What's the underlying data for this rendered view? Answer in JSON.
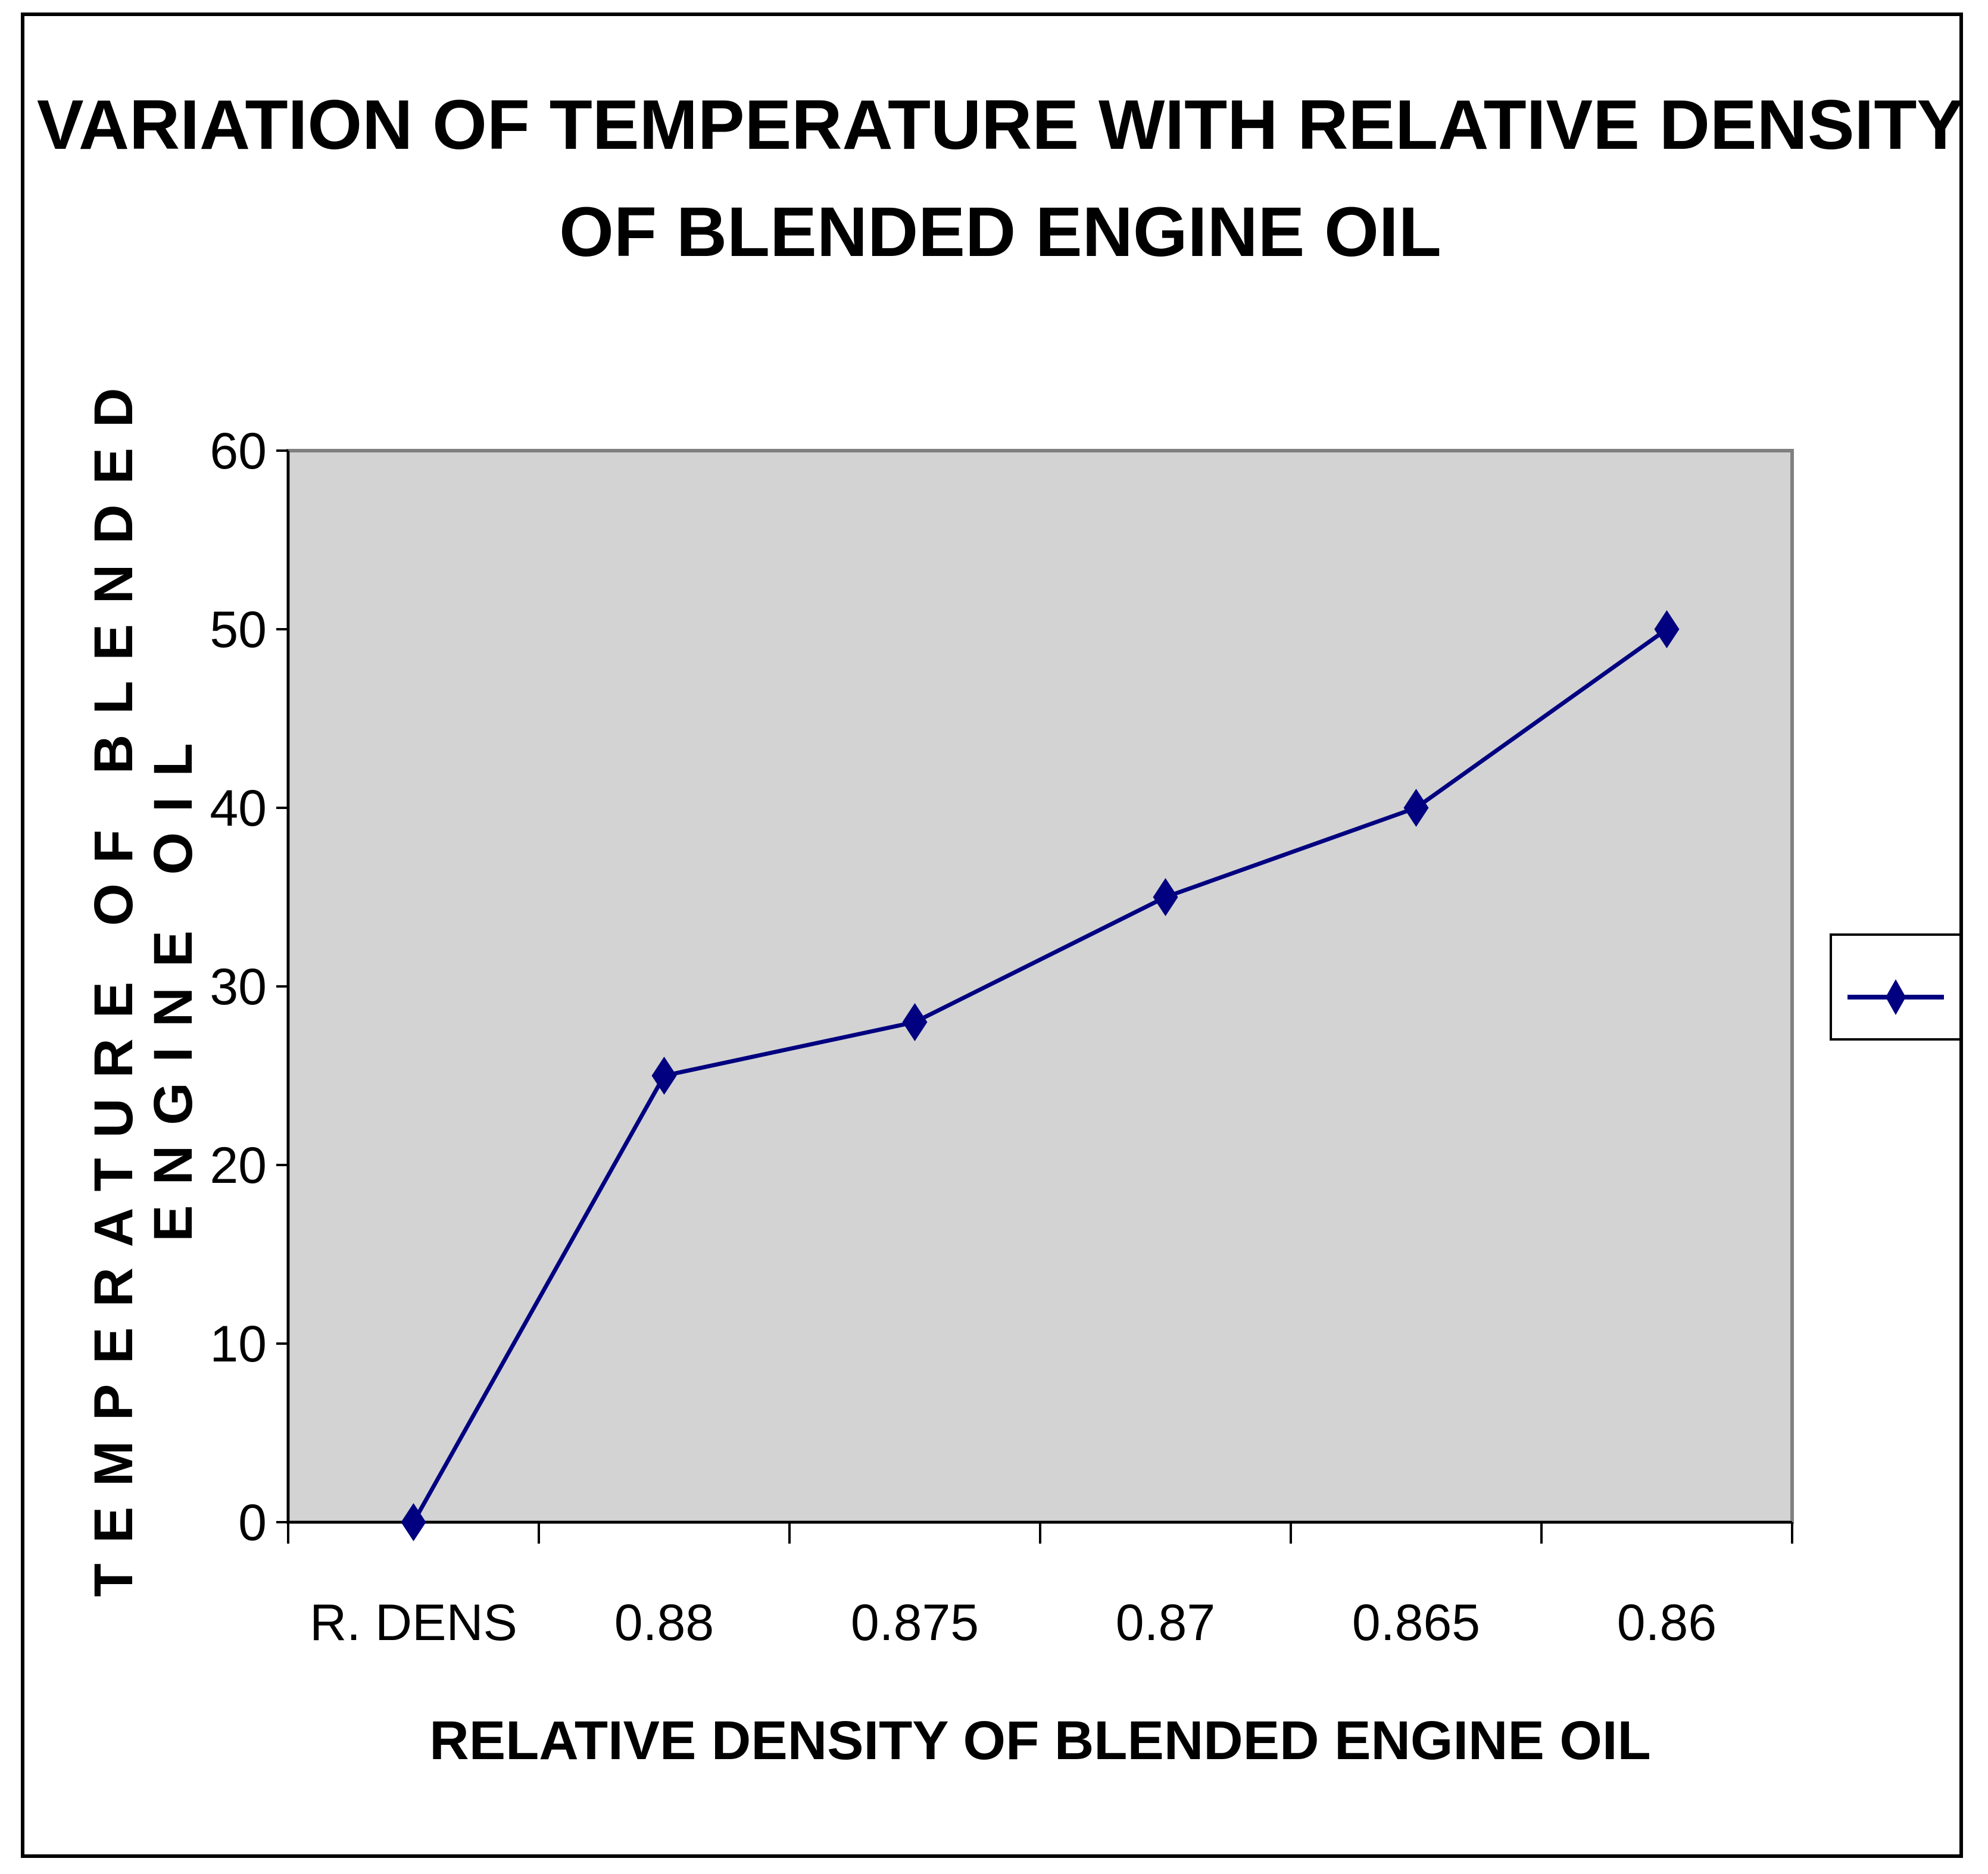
{
  "chart_data": {
    "type": "line",
    "title_lines": [
      "VARIATION OF TEMPERATURE WITH RELATIVE DENSITY",
      "OF BLENDED ENGINE OIL"
    ],
    "xlabel": "RELATIVE DENSITY OF BLENDED ENGINE OIL",
    "ylabel_lines": [
      "TEMPERATURE OF BLENDED",
      "ENGINE OIL"
    ],
    "categories": [
      "R. DENS",
      "0.88",
      "0.875",
      "0.87",
      "0.865",
      "0.86"
    ],
    "series": [
      {
        "name": "",
        "values": [
          0,
          25,
          28,
          35,
          40,
          50
        ]
      }
    ],
    "ylim": [
      0,
      60
    ],
    "yticks": [
      0,
      10,
      20,
      30,
      40,
      50,
      60
    ],
    "grid": false,
    "legend_position": "right",
    "colors": {
      "plot_background": "#d3d3d3",
      "series_line": "#000080",
      "axis": "#000000",
      "plot_border": "#808080"
    }
  }
}
